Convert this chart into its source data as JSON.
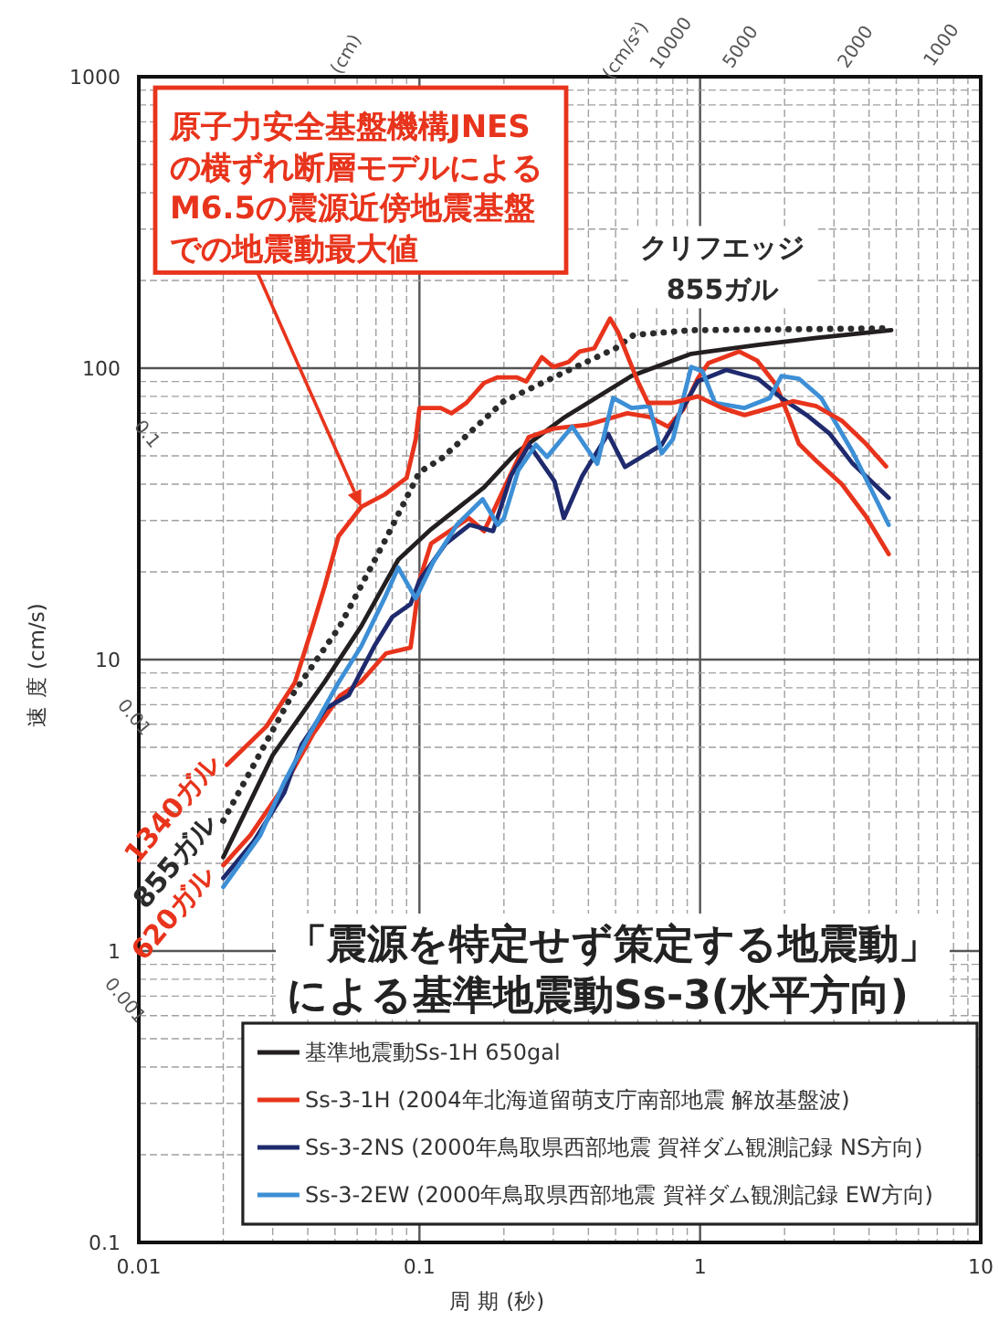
{
  "chart_data": {
    "type": "line",
    "title": "「震源を特定せず策定する地震動」",
    "subtitle": "による基準地震動Ss-3(水平方向)",
    "xlabel": "周 期 (秒)",
    "ylabel": "速 度 (cm/s)",
    "log": "xy",
    "xlim": [
      0.01,
      10
    ],
    "ylim": [
      0.1,
      1000
    ],
    "xticks": [
      0.01,
      0.1,
      1,
      10
    ],
    "yticks": [
      0.1,
      1,
      10,
      100,
      1000
    ],
    "grid": true,
    "legend": "bottom right",
    "series": [
      {
        "name": "基準地震動Ss-1H 650gal",
        "color": "#231f20",
        "x": [
          0.02,
          0.03,
          0.046,
          0.062,
          0.084,
          0.11,
          0.17,
          0.22,
          0.33,
          0.57,
          0.93,
          1.6,
          2.6,
          4.8
        ],
        "values": [
          2.1,
          4.7,
          8.4,
          13,
          22,
          28,
          39,
          51,
          68,
          94,
          112,
          120,
          127,
          135
        ]
      },
      {
        "name": "Ss-3-1H (2004年北海道留萌支庁南部地震 解放基盤波)",
        "color": "#e8341c",
        "x": [
          0.02,
          0.025,
          0.033,
          0.042,
          0.052,
          0.062,
          0.076,
          0.093,
          0.1,
          0.11,
          0.15,
          0.17,
          0.21,
          0.245,
          0.3,
          0.4,
          0.55,
          0.66,
          0.77,
          0.87,
          0.98,
          1.07,
          1.38,
          1.6,
          1.86,
          2.06,
          2.25,
          2.6,
          3.2,
          3.9,
          4.7
        ],
        "values": [
          1.97,
          2.5,
          3.7,
          5.6,
          7.5,
          8.4,
          10.5,
          11,
          18.7,
          25,
          30.6,
          27.6,
          42.7,
          58,
          62,
          64,
          70,
          68,
          63,
          72,
          92,
          104,
          114,
          106,
          88,
          69,
          55,
          48,
          40,
          31,
          23
        ]
      },
      {
        "name": "Ss-3-2NS (2000年鳥取県西部地震 賀祥ダム観測記録 NS方向)",
        "color": "#1f2a6e",
        "x": [
          0.02,
          0.0257,
          0.033,
          0.038,
          0.0464,
          0.056,
          0.069,
          0.08,
          0.093,
          0.1,
          0.124,
          0.151,
          0.183,
          0.212,
          0.246,
          0.303,
          0.327,
          0.38,
          0.47,
          0.54,
          0.73,
          0.89,
          0.98,
          1.24,
          1.61,
          1.95,
          2.4,
          2.9,
          3.5,
          4.7
        ],
        "values": [
          1.78,
          2.38,
          3.5,
          5.1,
          6.8,
          7.55,
          11.1,
          14,
          15.5,
          18.7,
          25,
          29,
          27.6,
          42.7,
          54.6,
          40.9,
          30.6,
          42.6,
          59.5,
          45.8,
          54.6,
          76,
          90,
          98.6,
          92,
          79,
          69,
          59.5,
          47,
          35.9
        ]
      },
      {
        "name": "Ss-3-2EW (2000年鳥取県西部地震 賀祥ダム観測記録 EW方向)",
        "color": "#3d8fd6",
        "x": [
          0.02,
          0.027,
          0.033,
          0.04,
          0.0515,
          0.062,
          0.075,
          0.084,
          0.097,
          0.112,
          0.136,
          0.168,
          0.19,
          0.2,
          0.225,
          0.26,
          0.285,
          0.35,
          0.43,
          0.49,
          0.57,
          0.66,
          0.73,
          0.8,
          0.93,
          1.02,
          1.13,
          1.44,
          1.77,
          1.95,
          2.25,
          2.7,
          3.5,
          4.7
        ],
        "values": [
          1.66,
          2.48,
          3.8,
          5.4,
          8.35,
          11.1,
          16.2,
          20.7,
          16.2,
          21.6,
          29,
          35.5,
          29,
          30.6,
          44.6,
          54.6,
          49.6,
          63,
          47,
          79,
          73,
          74,
          51,
          57,
          101,
          97.5,
          76,
          73,
          79,
          94,
          92,
          79,
          51.5,
          29
        ]
      },
      {
        "color": "#2b2b2b",
        "line_style": "dotted",
        "x": [
          0.02,
          0.035,
          0.052,
          0.076,
          0.1,
          0.12,
          0.2,
          0.33,
          0.5,
          0.58,
          0.93,
          4.8
        ],
        "values": [
          2.8,
          7.5,
          13,
          26,
          44,
          49,
          77,
          97,
          117,
          130,
          135,
          137
        ]
      },
      {
        "color": "#e8341c",
        "x": [
          0.0206,
          0.0285,
          0.036,
          0.042,
          0.046,
          0.0515,
          0.062,
          0.075,
          0.09,
          0.097,
          0.1,
          0.119,
          0.13,
          0.147,
          0.17,
          0.19,
          0.222,
          0.24,
          0.273,
          0.3,
          0.34,
          0.372,
          0.42,
          0.478,
          0.51,
          0.554,
          0.6,
          0.652,
          0.8,
          0.98,
          1.2,
          1.44,
          1.77,
          2.14,
          2.6,
          3.2,
          3.9,
          4.6
        ],
        "values": [
          4.35,
          5.9,
          8.35,
          13.4,
          17.9,
          26.5,
          33.4,
          36.8,
          42,
          57,
          73,
          73,
          70,
          76,
          89,
          93,
          93,
          90,
          109,
          101,
          105,
          114,
          117,
          148,
          133,
          109,
          90,
          76,
          76,
          80,
          73,
          69,
          73,
          77,
          74,
          66,
          55,
          46
        ]
      }
    ],
    "annotations": [
      "原子力安全基盤機構JNESの横ずれ断層モデルによるM6.5の震源近傍地震基盤での地震動最大値",
      {
        "text": "1340ガル",
        "x": 0.0206,
        "y": 4.35
      },
      {
        "text": "855ガル",
        "x": 0.02,
        "y": 2.8
      },
      {
        "text": "620ガル",
        "x": 0.02,
        "y": 1.97
      },
      {
        "text": "クリフエッジ 855ガル",
        "x": 1.2,
        "y": 135
      },
      "(cm)",
      "(cm/s²)",
      "10000",
      "5000",
      "2000",
      "1000",
      "0.1",
      "0.01",
      "0.001"
    ]
  }
}
